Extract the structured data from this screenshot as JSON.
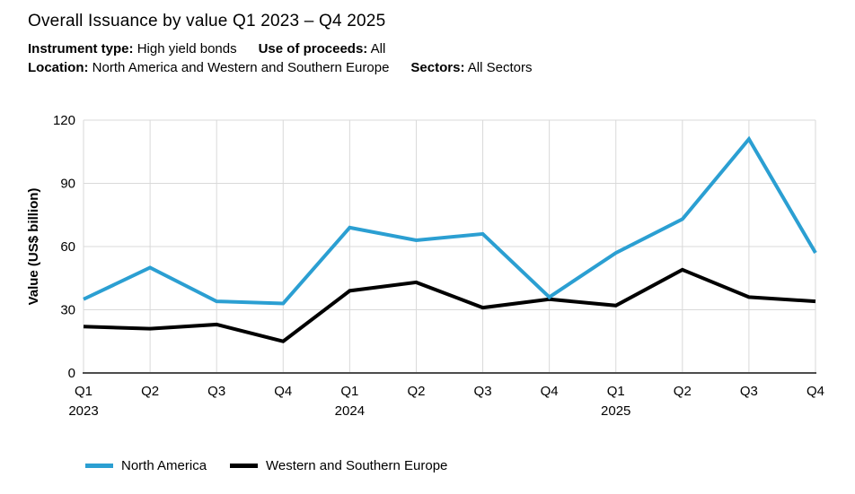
{
  "header": {
    "title": "Overall Issuance by value Q1 2023 – Q4 2025",
    "meta_lines": [
      {
        "pairs": [
          {
            "label": "Instrument type:",
            "value": "High yield bonds"
          },
          {
            "label": "Use of proceeds:",
            "value": "All"
          }
        ]
      },
      {
        "pairs": [
          {
            "label": "Location:",
            "value": "North America and Western and Southern Europe"
          },
          {
            "label": "Sectors:",
            "value": "All Sectors"
          }
        ]
      }
    ]
  },
  "chart_data": {
    "type": "line",
    "title": "Overall Issuance by value Q1 2023 – Q4 2025",
    "xlabel": "",
    "ylabel": "Value (US$ billion)",
    "ylim": [
      0,
      120
    ],
    "yticks": [
      0,
      30,
      60,
      90,
      120
    ],
    "grid": true,
    "legend_position": "bottom",
    "grid_color": "#d9d9d9",
    "axis_color": "#4d4d4d",
    "categories": [
      "Q1",
      "Q2",
      "Q3",
      "Q4",
      "Q1",
      "Q2",
      "Q3",
      "Q4",
      "Q1",
      "Q2",
      "Q3",
      "Q4"
    ],
    "year_labels": [
      {
        "text": "2023",
        "index": 0
      },
      {
        "text": "2024",
        "index": 4
      },
      {
        "text": "2025",
        "index": 8
      }
    ],
    "series": [
      {
        "name": "North America",
        "color": "#2b9fd2",
        "values": [
          35,
          50,
          34,
          33,
          69,
          63,
          66,
          36,
          57,
          73,
          111,
          57
        ]
      },
      {
        "name": "Western and Southern Europe",
        "color": "#000000",
        "values": [
          22,
          21,
          23,
          15,
          39,
          43,
          31,
          35,
          32,
          49,
          36,
          34
        ]
      }
    ]
  }
}
